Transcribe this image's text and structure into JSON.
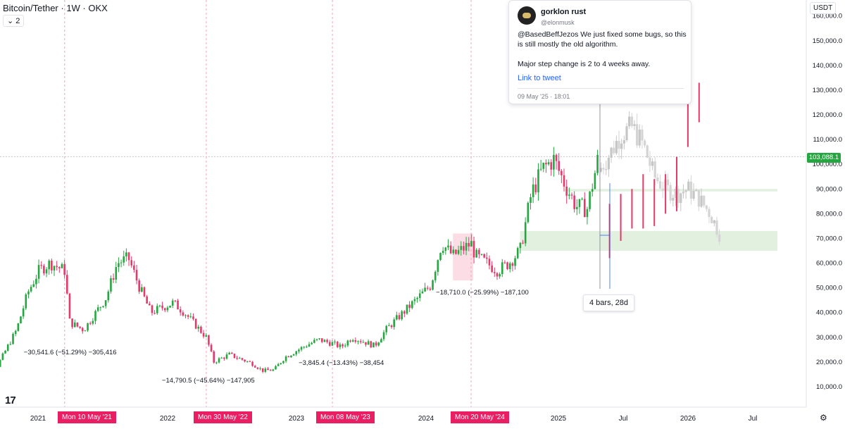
{
  "header": {
    "symbol": "Bitcoin/Tether · 1W · OKX",
    "collapse": "⌄ 2",
    "unit": "USDT"
  },
  "colors": {
    "up": "#26a641",
    "down": "#e5396b",
    "ghost": "#c6c6c6",
    "zone": "#dfeedd",
    "marker": "#e91e63",
    "vline": "#f3a5b5"
  },
  "tweet": {
    "name": "gorklon rust",
    "handle": "@elonmusk",
    "body": "@BasedBeffJezos We just fixed some bugs, so this is still mostly the old algorithm.\n\nMajor step change is 2 to 4 weeks away.",
    "link": "Link to tweet",
    "date": "09 May '25 · 18:01"
  },
  "measure_label": "4 bars, 28d",
  "last_price": "103,088.1",
  "markers": [
    "Mon 10 May '21",
    "Mon 30 May '22",
    "Mon 08 May '23",
    "Mon 20 May '24"
  ],
  "chart_data": {
    "type": "candlestick",
    "title": "Bitcoin/Tether · 1W · OKX",
    "x_range": [
      "2020-09",
      "2026-09"
    ],
    "ylim": [
      0,
      165000
    ],
    "y_ticks": [
      "10,000.0",
      "20,000.0",
      "30,000.0",
      "40,000.0",
      "50,000.0",
      "60,000.0",
      "70,000.0",
      "80,000.0",
      "90,000.0",
      "100,000.0",
      "110,000.0",
      "120,000.0",
      "130,000.0",
      "140,000.0",
      "150,000.0",
      "160,000.0"
    ],
    "x_ticks": [
      "2021",
      "2022",
      "2023",
      "2024",
      "2025",
      "Jul",
      "2026",
      "Jul"
    ],
    "price_path": [
      [
        "2020-09",
        10500
      ],
      [
        "2020-11",
        16000
      ],
      [
        "2021-01",
        33000
      ],
      [
        "2021-02",
        48000
      ],
      [
        "2021-03",
        57000
      ],
      [
        "2021-04",
        60000
      ],
      [
        "2021-05-10",
        57000
      ],
      [
        "2021-05-24",
        36000
      ],
      [
        "2021-07",
        33000
      ],
      [
        "2021-09",
        46000
      ],
      [
        "2021-10",
        60000
      ],
      [
        "2021-11",
        62000
      ],
      [
        "2021-12",
        50000
      ],
      [
        "2022-01",
        40000
      ],
      [
        "2022-03",
        44000
      ],
      [
        "2022-04",
        40000
      ],
      [
        "2022-05-30",
        30000
      ],
      [
        "2022-06-20",
        20000
      ],
      [
        "2022-08",
        23000
      ],
      [
        "2022-10",
        19500
      ],
      [
        "2022-11",
        16500
      ],
      [
        "2022-12",
        16800
      ],
      [
        "2023-01",
        22000
      ],
      [
        "2023-03",
        27000
      ],
      [
        "2023-04",
        29000
      ],
      [
        "2023-05-08",
        27500
      ],
      [
        "2023-06",
        26000
      ],
      [
        "2023-07",
        30000
      ],
      [
        "2023-09",
        26500
      ],
      [
        "2023-10",
        33000
      ],
      [
        "2023-12",
        42000
      ],
      [
        "2024-02",
        51000
      ],
      [
        "2024-03",
        68000
      ],
      [
        "2024-04",
        63000
      ],
      [
        "2024-05-20",
        68000
      ],
      [
        "2024-06",
        63000
      ],
      [
        "2024-07",
        60000
      ],
      [
        "2024-08",
        57000
      ],
      [
        "2024-09",
        60000
      ],
      [
        "2024-10",
        65000
      ],
      [
        "2024-11",
        88000
      ],
      [
        "2024-12",
        98000
      ],
      [
        "2025-01",
        102000
      ],
      [
        "2025-02",
        92000
      ],
      [
        "2025-03",
        83000
      ],
      [
        "2025-04",
        82000
      ],
      [
        "2025-05",
        103000
      ]
    ],
    "projection_ghost": [
      [
        "2025-05",
        97000
      ],
      [
        "2025-06",
        104000
      ],
      [
        "2025-07",
        112000
      ],
      [
        "2025-08",
        115000
      ],
      [
        "2025-09",
        108000
      ],
      [
        "2025-10",
        95000
      ],
      [
        "2025-11",
        90000
      ],
      [
        "2025-12",
        88000
      ],
      [
        "2026-01",
        90000
      ],
      [
        "2026-02",
        86000
      ],
      [
        "2026-03",
        80000
      ],
      [
        "2026-04",
        70000
      ]
    ],
    "projection_red": [
      [
        "2025-06",
        76000
      ],
      [
        "2025-07",
        80000
      ],
      [
        "2025-08",
        82000
      ],
      [
        "2025-09",
        88000
      ],
      [
        "2025-10",
        86000
      ],
      [
        "2025-11",
        88000
      ],
      [
        "2025-12",
        95000
      ],
      [
        "2026-01",
        118000
      ],
      [
        "2026-02",
        125000
      ]
    ],
    "drawdowns": [
      {
        "date": "2021-05-10",
        "label": "−30,541.6 (−51.29%) −305,416"
      },
      {
        "date": "2022-05-30",
        "label": "−14,790.5 (−45.64%) −147,905"
      },
      {
        "date": "2023-05-08",
        "label": "−3,845.4 (−13.43%) −38,454"
      },
      {
        "date": "2024-05-20",
        "label": "−18,710.0 (−25.99%) −187,100"
      }
    ],
    "support_zones": [
      {
        "from": "2024-10",
        "to": "2026-09",
        "low": 65000,
        "high": 73000
      },
      {
        "from": "2025-02",
        "to": "2026-09",
        "low": 89000,
        "high": 90000
      }
    ],
    "last_price": 103088.1
  }
}
